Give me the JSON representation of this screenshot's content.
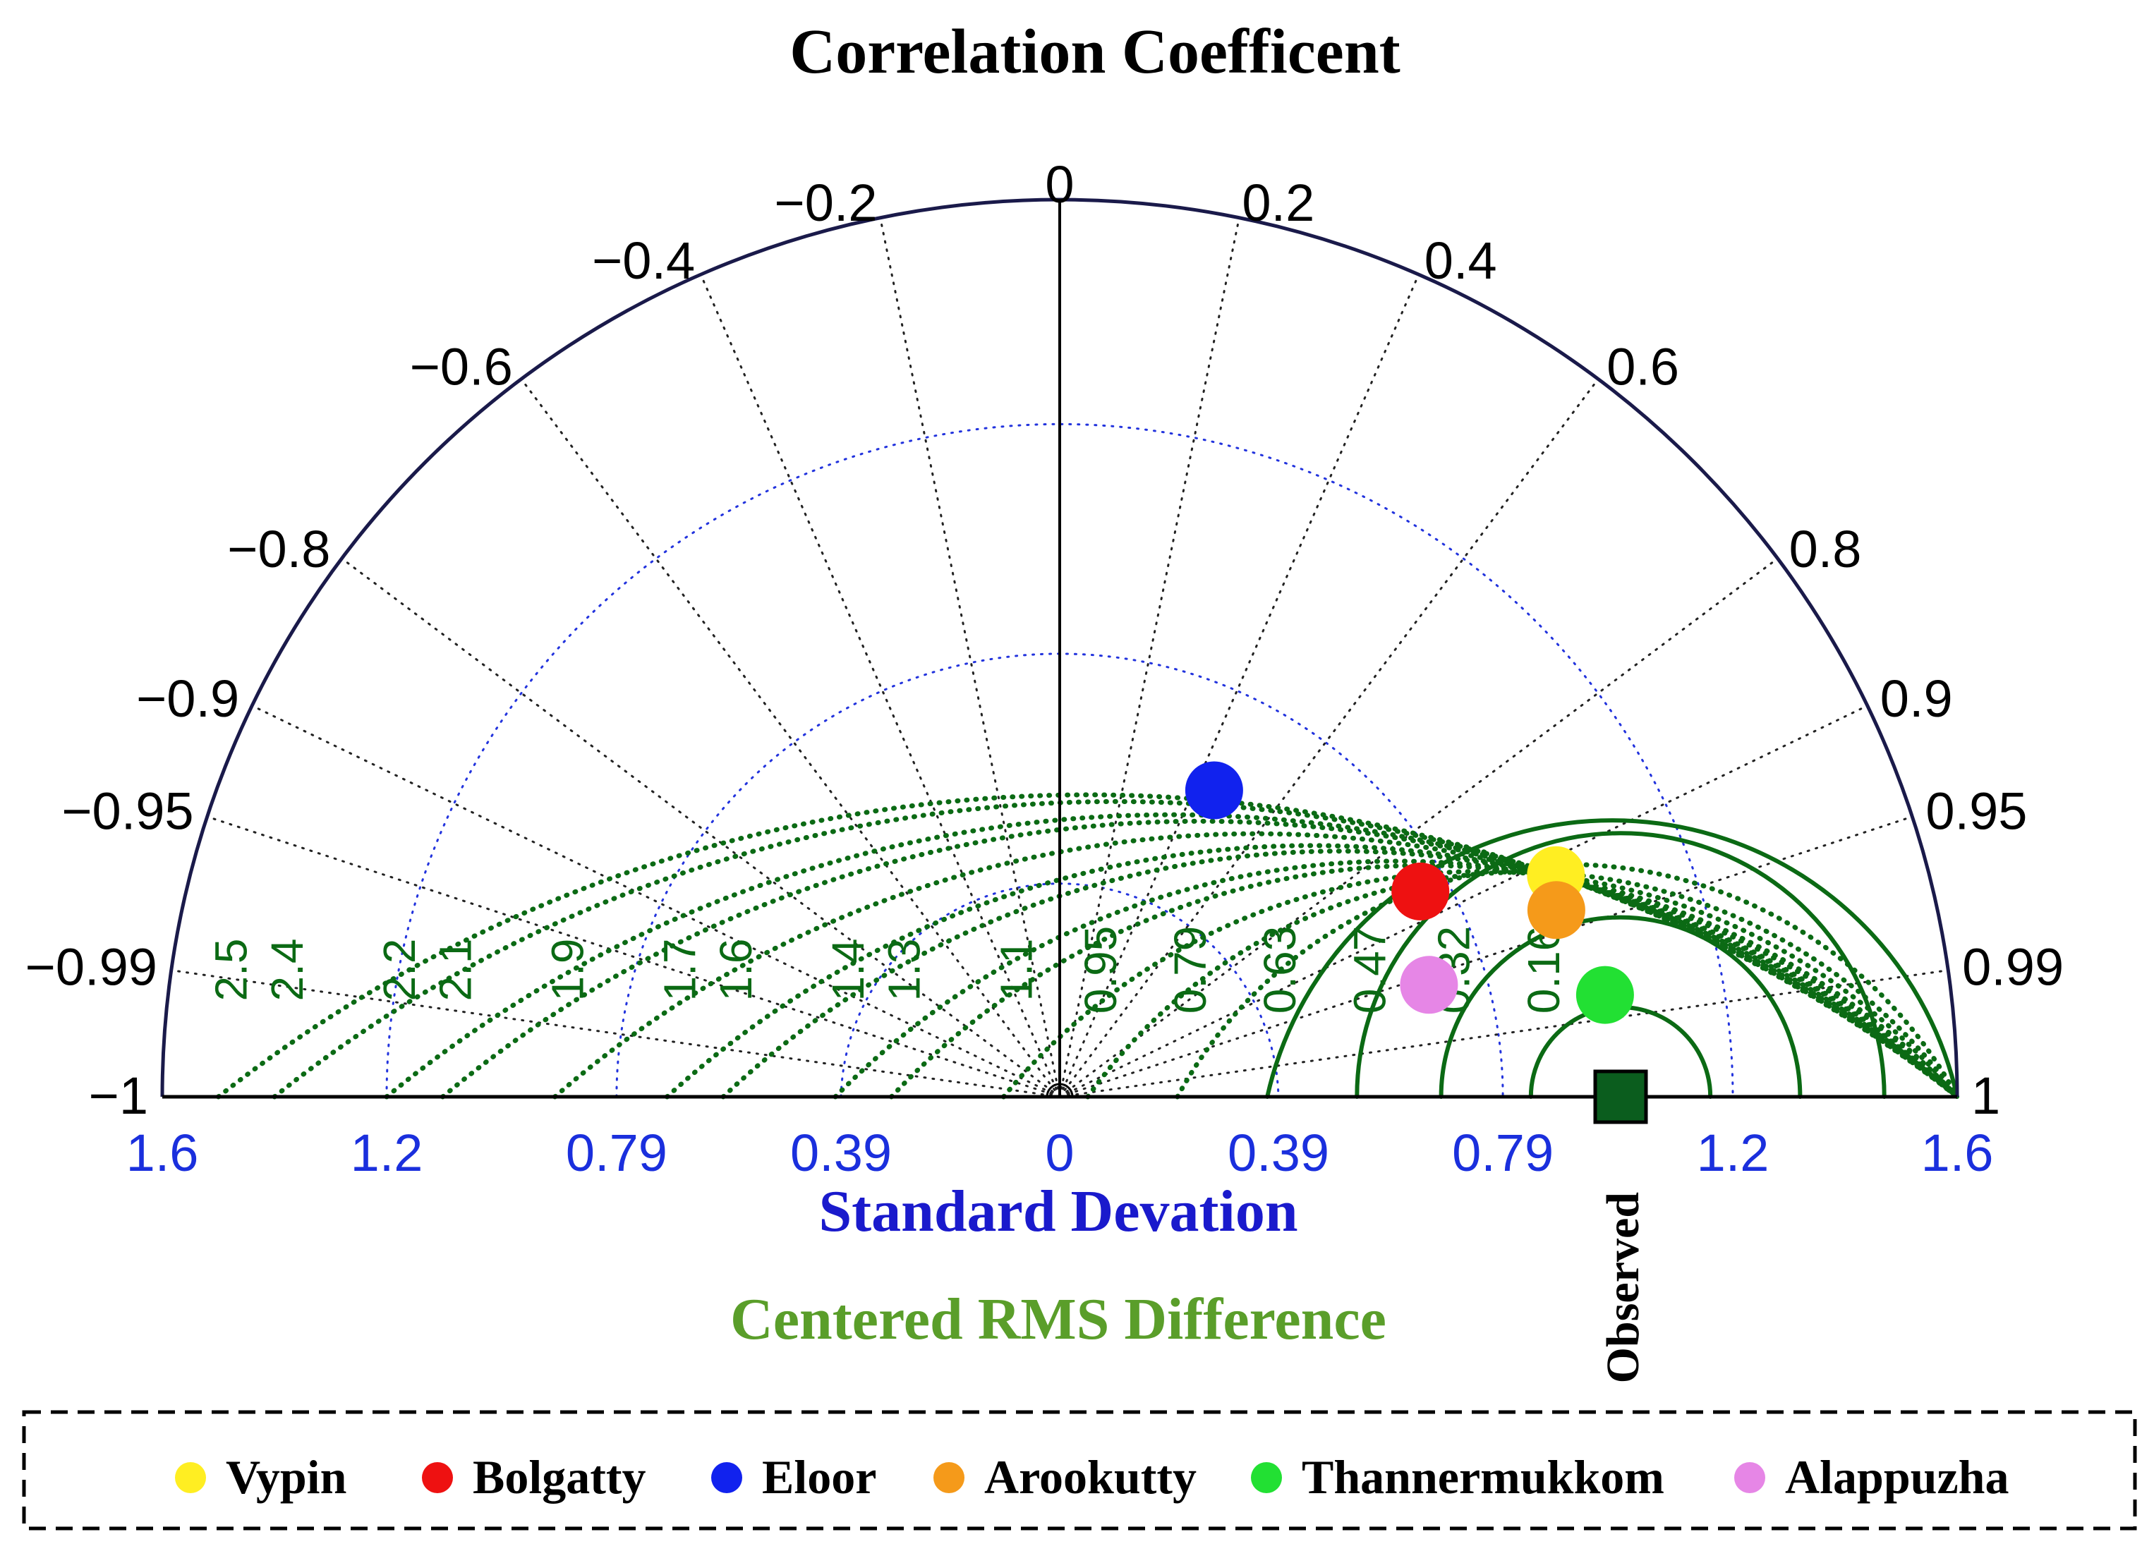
{
  "chart_data": {
    "type": "taylor-diagram",
    "title": "Correlation Coefficent",
    "xlabel": "Standard Devation",
    "rms_label": "Centered RMS Difference",
    "std_max": 1.6,
    "std_ticks": [
      {
        "value": -1.6,
        "label": "1.6"
      },
      {
        "value": -1.2,
        "label": "1.2"
      },
      {
        "value": -0.79,
        "label": "0.79"
      },
      {
        "value": -0.39,
        "label": "0.39"
      },
      {
        "value": 0,
        "label": "0"
      },
      {
        "value": 0.39,
        "label": "0.39"
      },
      {
        "value": 0.79,
        "label": "0.79"
      },
      {
        "value": 1.2,
        "label": "1.2"
      },
      {
        "value": 1.6,
        "label": "1.6"
      }
    ],
    "std_circles": [
      0.39,
      0.79,
      1.2
    ],
    "corr_ticks": [
      {
        "value": -1,
        "label": "−1"
      },
      {
        "value": -0.99,
        "label": "−0.99"
      },
      {
        "value": -0.95,
        "label": "−0.95"
      },
      {
        "value": -0.9,
        "label": "−0.9"
      },
      {
        "value": -0.8,
        "label": "−0.8"
      },
      {
        "value": -0.6,
        "label": "−0.6"
      },
      {
        "value": -0.4,
        "label": "−0.4"
      },
      {
        "value": -0.2,
        "label": "−0.2"
      },
      {
        "value": 0,
        "label": "0"
      },
      {
        "value": 0.2,
        "label": "0.2"
      },
      {
        "value": 0.4,
        "label": "0.4"
      },
      {
        "value": 0.6,
        "label": "0.6"
      },
      {
        "value": 0.8,
        "label": "0.8"
      },
      {
        "value": 0.9,
        "label": "0.9"
      },
      {
        "value": 0.95,
        "label": "0.95"
      },
      {
        "value": 0.99,
        "label": "0.99"
      },
      {
        "value": 1,
        "label": "1"
      }
    ],
    "observed": {
      "std": 1.0,
      "name": "Observed",
      "color": "#0b5d1e"
    },
    "rms_contours": [
      {
        "value": 0.16,
        "label": "0.16"
      },
      {
        "value": 0.32,
        "label": "0.32"
      },
      {
        "value": 0.47,
        "label": "0.47"
      },
      {
        "value": 0.63,
        "label": "0.63"
      },
      {
        "value": 0.79,
        "label": "0.79"
      },
      {
        "value": 0.95,
        "label": "0.95"
      },
      {
        "value": 1.1,
        "label": "1.1"
      },
      {
        "value": 1.3,
        "label": "1.3"
      },
      {
        "value": 1.4,
        "label": "1.4"
      },
      {
        "value": 1.6,
        "label": "1.6"
      },
      {
        "value": 1.7,
        "label": "1.7"
      },
      {
        "value": 1.9,
        "label": "1.9"
      },
      {
        "value": 2.1,
        "label": "2.1"
      },
      {
        "value": 2.2,
        "label": "2.2"
      },
      {
        "value": 2.4,
        "label": "2.4"
      },
      {
        "value": 2.5,
        "label": "2.5"
      }
    ],
    "series": [
      {
        "name": "Vypin",
        "color": "#ffee22",
        "std": 0.969,
        "corr": 0.913
      },
      {
        "name": "Bolgatty",
        "color": "#ee1111",
        "std": 0.74,
        "corr": 0.869
      },
      {
        "name": "Eloor",
        "color": "#1122ee",
        "std": 0.612,
        "corr": 0.45
      },
      {
        "name": "Arookutty",
        "color": "#f59a1a",
        "std": 0.946,
        "corr": 0.936
      },
      {
        "name": "Thannermukkom",
        "color": "#22e033",
        "std": 0.989,
        "corr": 0.983
      },
      {
        "name": "Alappuzha",
        "color": "#e686e6",
        "std": 0.688,
        "corr": 0.957
      }
    ],
    "colors": {
      "axis": "#000000",
      "outer_arc": "#1a1a4a",
      "std_grid": "#2233dd",
      "std_labels": "#1a2fdd",
      "rms_grid": "#0b6a14",
      "rms_title": "#5a9e2a",
      "xlabel": "#1a1acc"
    }
  }
}
